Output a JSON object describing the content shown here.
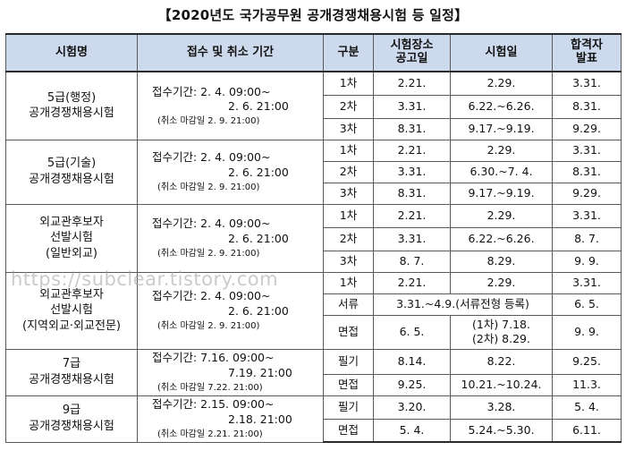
{
  "title": "【2020년도 국가공무원 공개경쟁채용시험 등 일정】",
  "watermark": "https://subclear.tistory.com",
  "headers": {
    "exam": "시험명",
    "period": "접수 및 취소 기간",
    "stage": "구분",
    "venue_1": "시험장소",
    "venue_2": "공고일",
    "exam_date": "시험일",
    "result_1": "합격자",
    "result_2": "발표"
  },
  "groups": [
    {
      "name": [
        "5급(행정)",
        "공개경쟁채용시험"
      ],
      "period": [
        "접수기간: 2. 4. 09:00~",
        "2. 6. 21:00",
        "(취소 마감일 2. 9. 21:00)"
      ],
      "rows": [
        {
          "stage": "1차",
          "venue": "2.21.",
          "date": "2.29.",
          "result": "3.31."
        },
        {
          "stage": "2차",
          "venue": "3.31.",
          "date": "6.22.~6.26.",
          "result": "8.31."
        },
        {
          "stage": "3차",
          "venue": "8.31.",
          "date": "9.17.~9.19.",
          "result": "9.29."
        }
      ]
    },
    {
      "name": [
        "5급(기술)",
        "공개경쟁채용시험"
      ],
      "period": [
        "접수기간: 2. 4. 09:00~",
        "2. 6. 21:00",
        "(취소 마감일 2. 9. 21:00)"
      ],
      "rows": [
        {
          "stage": "1차",
          "venue": "2.21.",
          "date": "2.29.",
          "result": "3.31."
        },
        {
          "stage": "2차",
          "venue": "3.31.",
          "date": "6.30.~7. 4.",
          "result": "8.31."
        },
        {
          "stage": "3차",
          "venue": "8.31.",
          "date": "9.17.~9.19.",
          "result": "9.29."
        }
      ]
    },
    {
      "name": [
        "외교관후보자",
        "선발시험",
        "(일반외교)"
      ],
      "period": [
        "접수기간: 2. 4. 09:00~",
        "2. 6. 21:00",
        "(취소 마감일 2. 9. 21:00)"
      ],
      "rows": [
        {
          "stage": "1차",
          "venue": "2.21.",
          "date": "2.29.",
          "result": "3.31."
        },
        {
          "stage": "2차",
          "venue": "3.31.",
          "date": "6.22.~6.26.",
          "result": "8. 7."
        },
        {
          "stage": "3차",
          "venue": "8. 7.",
          "date": "8.29.",
          "result": "9. 9."
        }
      ]
    },
    {
      "name": [
        "외교관후보자",
        "선발시험",
        "(지역외교·외교전문)"
      ],
      "period": [
        "접수기간: 2. 4. 09:00~",
        "2. 6. 21:00",
        "(취소 마감일 2. 9. 21:00)"
      ],
      "rows": [
        {
          "stage": "1차",
          "venue": "2.21.",
          "date": "2.29.",
          "result": "3.31."
        },
        {
          "stage": "서류",
          "merged_note": "3.31.~4.9.(서류전형 등록)",
          "result": "6. 5."
        },
        {
          "stage": "면접",
          "venue": "6. 5.",
          "date_lines": [
            "(1차) 7.18.",
            "(2차) 8.29."
          ],
          "result": "9. 9."
        }
      ]
    },
    {
      "name": [
        "7급",
        "공개경쟁채용시험"
      ],
      "period": [
        "접수기간: 7.16. 09:00~",
        "7.19. 21:00",
        "(취소 마감일 7.22. 21:00)"
      ],
      "rows": [
        {
          "stage": "필기",
          "venue": "8.14.",
          "date": "8.22.",
          "result": "9.25."
        },
        {
          "stage": "면접",
          "venue": "9.25.",
          "date": "10.21.~10.24.",
          "result": "11.3."
        }
      ]
    },
    {
      "name": [
        "9급",
        "공개경쟁채용시험"
      ],
      "period": [
        "접수기간: 2.15. 09:00~",
        "2.18. 21:00",
        "(취소 마감일 2.21. 21:00)"
      ],
      "rows": [
        {
          "stage": "필기",
          "venue": "3.20.",
          "date": "3.28.",
          "result": "5. 4."
        },
        {
          "stage": "면접",
          "venue": "5. 4.",
          "date": "5.24.~5.30.",
          "result": "6.11."
        }
      ]
    }
  ]
}
